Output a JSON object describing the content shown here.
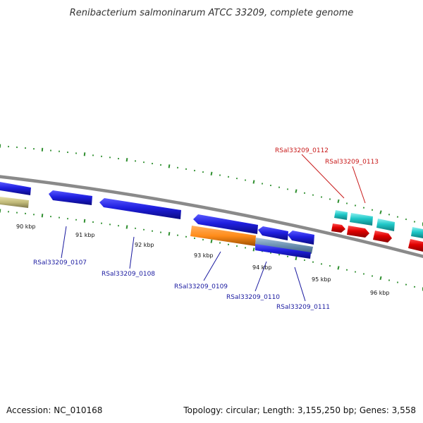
{
  "title": "Renibacterium salmoninarum ATCC 33209, complete genome",
  "footer": {
    "accession": "Accession: NC_010168",
    "summary": "Topology: circular; Length: 3,155,250 bp; Genes: 3,558"
  },
  "colors": {
    "backbone": "#8a8a8a",
    "tick": "#2f8f2f",
    "forward_cds": "#1f1fe0",
    "reverse_cds": "#e00000",
    "rna": "#1fc8c8",
    "pseudo": "#ff8c1a",
    "repeat": "#6a8fb0",
    "misc": "#c2bb7a",
    "label_blue": "#1a1aa0",
    "label_red": "#c81818"
  },
  "scale_labels": [
    {
      "text": "90 kbp"
    },
    {
      "text": "91 kbp"
    },
    {
      "text": "92 kbp"
    },
    {
      "text": "93 kbp"
    },
    {
      "text": "94 kbp"
    },
    {
      "text": "95 kbp"
    },
    {
      "text": "96 kbp"
    }
  ],
  "gene_labels": [
    {
      "text": "RSal33209_0107",
      "color": "label_blue"
    },
    {
      "text": "RSal33209_0108",
      "color": "label_blue"
    },
    {
      "text": "RSal33209_0109",
      "color": "label_blue"
    },
    {
      "text": "RSal33209_0110",
      "color": "label_blue"
    },
    {
      "text": "RSal33209_0111",
      "color": "label_blue"
    },
    {
      "text": "RSal33209_0112",
      "color": "label_red"
    },
    {
      "text": "RSal33209_0113",
      "color": "label_red"
    }
  ]
}
